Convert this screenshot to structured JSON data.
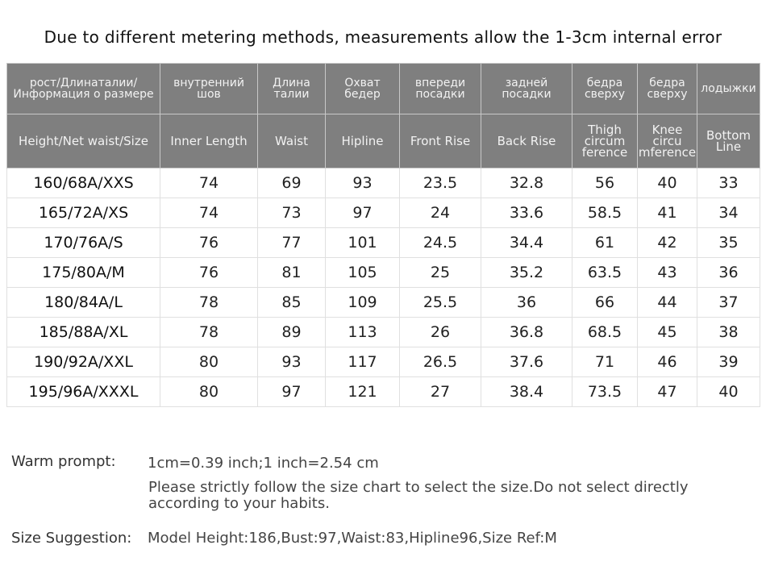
{
  "notice": "Due to different metering methods, measurements allow the 1-3cm internal error",
  "table": {
    "headers_ru": [
      "рост/Длинаталии/\nИнформация о размере",
      "внутренний\nшов",
      "Длина\nталии",
      "Охват\nбедер",
      "впереди\nпосадки",
      "задней\nпосадки",
      "бедра\nсверху",
      "бедра\nсверху",
      "лодыжки"
    ],
    "headers_en": [
      "Height/Net waist/Size",
      "Inner  Length",
      "Waist",
      "Hipline",
      "Front Rise",
      "Back Rise",
      "Thigh\ncircum\nference",
      "Knee\ncircu\nmference",
      "Bottom\nLine"
    ],
    "rows": [
      [
        "160/68A/XXS",
        "74",
        "69",
        "93",
        "23.5",
        "32.8",
        "56",
        "40",
        "33"
      ],
      [
        "165/72A/XS",
        "74",
        "73",
        "97",
        "24",
        "33.6",
        "58.5",
        "41",
        "34"
      ],
      [
        "170/76A/S",
        "76",
        "77",
        "101",
        "24.5",
        "34.4",
        "61",
        "42",
        "35"
      ],
      [
        "175/80A/M",
        "76",
        "81",
        "105",
        "25",
        "35.2",
        "63.5",
        "43",
        "36"
      ],
      [
        "180/84A/L",
        "78",
        "85",
        "109",
        "25.5",
        "36",
        "66",
        "44",
        "37"
      ],
      [
        "185/88A/XL",
        "78",
        "89",
        "113",
        "26",
        "36.8",
        "68.5",
        "45",
        "38"
      ],
      [
        "190/92A/XXL",
        "80",
        "93",
        "117",
        "26.5",
        "37.6",
        "71",
        "46",
        "39"
      ],
      [
        "195/96A/XXXL",
        "80",
        "97",
        "121",
        "27",
        "38.4",
        "73.5",
        "47",
        "40"
      ]
    ]
  },
  "warm_prompt": {
    "label": "Warm prompt:",
    "line1": "1cm=0.39 inch;1 inch=2.54 cm",
    "line2": "Please strictly follow the size chart  to select the size.Do not select directly according to your habits."
  },
  "size_suggestion": {
    "label": "Size Suggestion:",
    "text": "Model Height:186,Bust:97,Waist:83,Hipline96,Size Ref:M"
  }
}
